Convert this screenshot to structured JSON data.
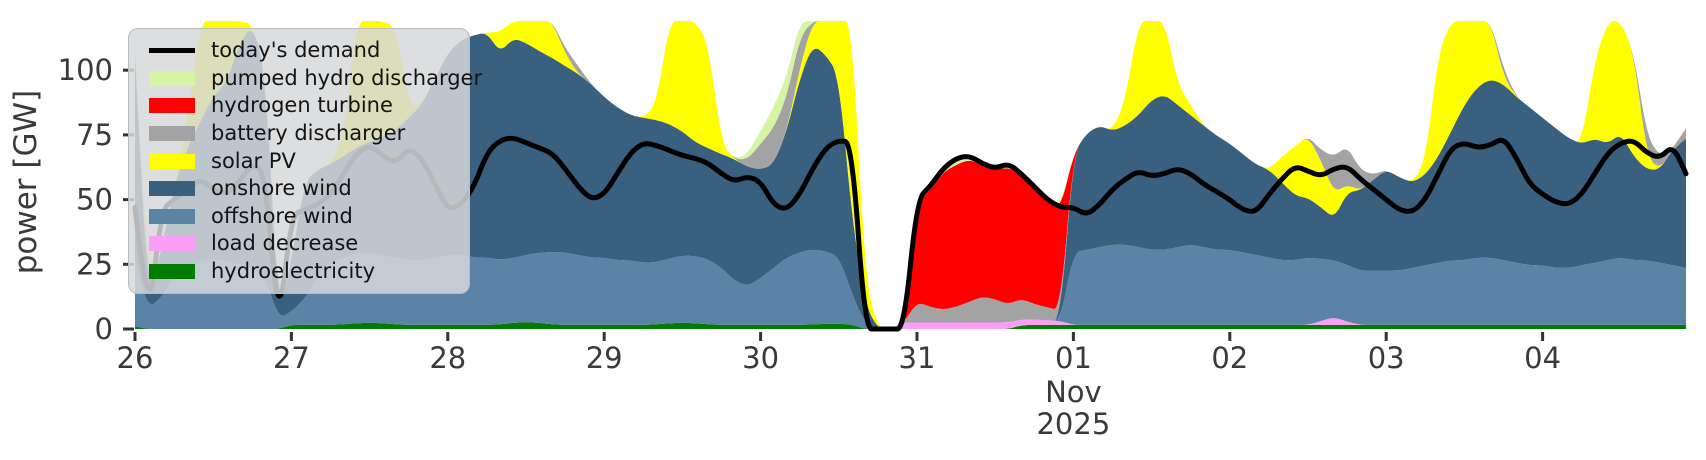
{
  "chart_data": {
    "type": "area",
    "stacked": true,
    "title": "",
    "ylabel": "power [GW]",
    "y_ticks": [
      0,
      25,
      50,
      75,
      100
    ],
    "ylim": [
      0,
      119
    ],
    "x_tick_labels": [
      "26",
      "27",
      "28",
      "29",
      "30",
      "31",
      "01",
      "02",
      "03",
      "04"
    ],
    "x_month_label": "Nov",
    "x_year_label": "2025",
    "hours_step": 2,
    "legend": {
      "items": [
        {
          "label": "today's demand",
          "type": "line",
          "color": "#000000"
        },
        {
          "label": "pumped hydro discharger",
          "type": "patch",
          "color": "#d5f5a5"
        },
        {
          "label": "hydrogen turbine",
          "type": "patch",
          "color": "#ff0000"
        },
        {
          "label": "battery discharger",
          "type": "patch",
          "color": "#a3a3a3"
        },
        {
          "label": "solar PV",
          "type": "patch",
          "color": "#ffff00"
        },
        {
          "label": "onshore wind",
          "type": "patch",
          "color": "#39607f"
        },
        {
          "label": "offshore wind",
          "type": "patch",
          "color": "#5b83a6"
        },
        {
          "label": "load decrease",
          "type": "patch",
          "color": "#fa9ef7"
        },
        {
          "label": "hydroelectricity",
          "type": "patch",
          "color": "#007d00"
        }
      ]
    },
    "series": [
      {
        "name": "hydroelectricity",
        "color": "#007d00",
        "values": [
          1,
          0,
          0,
          0,
          0,
          0,
          0,
          0,
          0,
          0,
          0,
          0,
          1.6,
          1.6,
          1.6,
          1.6,
          1.8,
          2.2,
          2.4,
          2.2,
          1.8,
          1.6,
          1.6,
          1.6,
          1.6,
          1.6,
          1.6,
          1.6,
          1.8,
          2.4,
          2.6,
          2.4,
          1.8,
          1.6,
          1.6,
          1.6,
          1.6,
          1.6,
          1.6,
          1.6,
          1.8,
          2.2,
          2.4,
          2.2,
          1.8,
          1.6,
          1.6,
          1.6,
          1.6,
          1.6,
          1.6,
          1.6,
          1.8,
          2,
          2,
          1.8,
          0,
          0,
          0,
          0,
          0,
          0,
          0,
          0,
          0,
          0,
          0,
          0,
          1.5,
          1.6,
          1.6,
          1.6,
          1.6,
          1.6,
          1.6,
          1.6,
          1.6,
          1.6,
          1.6,
          1.6,
          1.6,
          1.6,
          1.6,
          1.6,
          1.6,
          1.6,
          1.6,
          1.6,
          1.6,
          1.6,
          1.6,
          1.6,
          1.6,
          1.6,
          1.6,
          1.6,
          1.6,
          1.6,
          1.6,
          1.6,
          1.6,
          1.6,
          1.6,
          1.6,
          1.6,
          1.6,
          1.6,
          1.6,
          1.6,
          1.6,
          1.6,
          1.6,
          1.6,
          1.6,
          1.6,
          1.6,
          1.6,
          1.6,
          1.6,
          1.6
        ]
      },
      {
        "name": "load decrease",
        "color": "#fa9ef7",
        "values": [
          0,
          0,
          0,
          0,
          0,
          0,
          0,
          0,
          0,
          0,
          0,
          0,
          0,
          0,
          0,
          0,
          0,
          0,
          0,
          0,
          0,
          0,
          0,
          0,
          0,
          0,
          0,
          0,
          0,
          0,
          0,
          0,
          0,
          0,
          0,
          0,
          0,
          0,
          0,
          0,
          0,
          0,
          0,
          0,
          0,
          0,
          0,
          0,
          0,
          0,
          0,
          0,
          0,
          0,
          0,
          0,
          0,
          0,
          0,
          2.5,
          2.5,
          2.5,
          2.5,
          2.5,
          2.5,
          2.5,
          2.5,
          2.5,
          2.2,
          2,
          1.8,
          1.5,
          0,
          0,
          0,
          0,
          0,
          0,
          0,
          0,
          0,
          0,
          0,
          0,
          0,
          0,
          0,
          0,
          0,
          0,
          0,
          1.5,
          3,
          1.2,
          0,
          0,
          0,
          0,
          0,
          0,
          0,
          0,
          0,
          0,
          0,
          0,
          0,
          0,
          0,
          0,
          0,
          0,
          0,
          0,
          0,
          0,
          0,
          0,
          0,
          0
        ]
      },
      {
        "name": "offshore wind",
        "color": "#5b83a6",
        "values": [
          26,
          8,
          12,
          20,
          24,
          26,
          27,
          26,
          25,
          24,
          20,
          4,
          5,
          10,
          18,
          24,
          26,
          27,
          27,
          26,
          26,
          25,
          25,
          26,
          27,
          27,
          26,
          26,
          25,
          25,
          26,
          27,
          28,
          28,
          27,
          26,
          26,
          25,
          25,
          24,
          24,
          25,
          26,
          26,
          25,
          22,
          17,
          15,
          18,
          22,
          26,
          28,
          29,
          28,
          26,
          12,
          2,
          0,
          0,
          0,
          0,
          0,
          0,
          0,
          0,
          0,
          0,
          0,
          0,
          0,
          0,
          0,
          28,
          29,
          30,
          31,
          31,
          30,
          29,
          29,
          30,
          31,
          30,
          29,
          29,
          28,
          27,
          26,
          25,
          25,
          26,
          24,
          22,
          22,
          21,
          21,
          21,
          21,
          22,
          23,
          24,
          25,
          25,
          26,
          26,
          25,
          24,
          23,
          23,
          22,
          22,
          23,
          24,
          25,
          26,
          25,
          25,
          24,
          23,
          22
        ]
      },
      {
        "name": "onshore wind",
        "color": "#39607f",
        "values": [
          79,
          2,
          18,
          35,
          46,
          54,
          63,
          69,
          85,
          94,
          80,
          0,
          20,
          45,
          42,
          38,
          39,
          41,
          43,
          46,
          49,
          55,
          60,
          69,
          78,
          83,
          86,
          87,
          80,
          85,
          82,
          78,
          75,
          72,
          70,
          67,
          62,
          59,
          56,
          56,
          55,
          52,
          48,
          44,
          43,
          44,
          47,
          46,
          42,
          40,
          49,
          67,
          79,
          76,
          70,
          30,
          8,
          0,
          0,
          0,
          0,
          0,
          0,
          0,
          0,
          0,
          0,
          0,
          0,
          0,
          0,
          0,
          38,
          45,
          47,
          44,
          46,
          51,
          58,
          60,
          55,
          50,
          47,
          44,
          41,
          38,
          35,
          34,
          30,
          25,
          23,
          20,
          16,
          28,
          31,
          35,
          39,
          36,
          33,
          35,
          41,
          50,
          60,
          66,
          69,
          68,
          64,
          61,
          57,
          54,
          50,
          47,
          48,
          45,
          48,
          40,
          35,
          36,
          45,
          50
        ]
      },
      {
        "name": "solar PV",
        "color": "#ffff00",
        "values": [
          0,
          0,
          0,
          0,
          10,
          60,
          130,
          60,
          10,
          0,
          0,
          0,
          0,
          0,
          0,
          0,
          8,
          50,
          120,
          125,
          40,
          5,
          0,
          0,
          0,
          0,
          0,
          0,
          8,
          70,
          150,
          140,
          60,
          5,
          0,
          0,
          0,
          0,
          0,
          0,
          6,
          50,
          130,
          120,
          40,
          4,
          0,
          0,
          0,
          0,
          0,
          4,
          25,
          80,
          140,
          150,
          10,
          0,
          0,
          0,
          0,
          0,
          0,
          0,
          0,
          0,
          0,
          0,
          0,
          0,
          0,
          0,
          0,
          0,
          0,
          0,
          10,
          60,
          140,
          80,
          8,
          4,
          0,
          0,
          0,
          0,
          0,
          0,
          10,
          19,
          24,
          18,
          10,
          3,
          0,
          0,
          0,
          0,
          0,
          5,
          40,
          130,
          150,
          120,
          30,
          3,
          0,
          0,
          0,
          0,
          0,
          0,
          30,
          110,
          140,
          40,
          5,
          0,
          0,
          0
        ]
      },
      {
        "name": "battery discharger",
        "color": "#a3a3a3",
        "values": [
          0,
          0,
          0,
          0,
          0,
          0,
          0,
          0,
          0,
          0,
          0,
          0,
          0,
          0,
          0,
          0,
          0,
          0,
          0,
          0,
          0,
          0,
          0,
          0,
          0,
          0,
          0,
          0,
          0,
          0,
          0,
          0,
          0,
          2,
          3,
          0,
          0,
          0,
          0,
          0,
          0,
          0,
          0,
          0,
          0,
          0,
          0,
          3,
          10,
          14,
          13,
          12,
          8,
          4,
          2,
          0,
          0,
          0,
          0,
          0,
          8,
          6,
          5,
          6,
          8,
          10,
          9,
          7,
          8,
          6,
          5,
          4,
          0,
          0,
          0,
          0,
          0,
          0,
          0,
          0,
          0,
          0,
          0,
          0,
          0,
          0,
          0,
          0,
          0,
          0,
          0,
          4,
          14,
          15,
          8,
          2,
          0,
          0,
          0,
          0,
          0,
          0,
          0,
          0,
          0,
          3,
          0,
          0,
          0,
          0,
          0,
          0,
          0,
          0,
          0,
          0,
          8,
          5,
          0,
          4
        ]
      },
      {
        "name": "hydrogen turbine",
        "color": "#ff0000",
        "values": [
          0,
          0,
          0,
          0,
          0,
          0,
          0,
          0,
          0,
          0,
          0,
          0,
          0,
          0,
          0,
          0,
          0,
          0,
          0,
          0,
          0,
          0,
          0,
          0,
          0,
          0,
          0,
          0,
          0,
          0,
          0,
          0,
          0,
          0,
          0,
          0,
          0,
          0,
          0,
          0,
          0,
          0,
          0,
          0,
          0,
          0,
          0,
          0,
          0,
          0,
          0,
          0,
          0,
          0,
          0,
          0,
          0,
          0,
          0,
          0,
          38,
          45,
          53,
          55,
          55,
          51,
          50,
          53,
          48,
          45,
          41,
          39,
          0,
          0,
          0,
          0,
          0,
          0,
          0,
          0,
          0,
          0,
          0,
          0,
          0,
          0,
          0,
          0,
          0,
          0,
          0,
          0,
          0,
          0,
          0,
          0,
          0,
          0,
          0,
          0,
          0,
          0,
          0,
          0,
          0,
          0,
          0,
          0,
          0,
          0,
          0,
          0,
          0,
          0,
          0,
          0,
          0,
          0,
          0,
          0
        ]
      },
      {
        "name": "pumped hydro discharger",
        "color": "#d5f5a5",
        "values": [
          6,
          0,
          0,
          0,
          0,
          0,
          0,
          0,
          0,
          0,
          0,
          0,
          0,
          0,
          0,
          0,
          0,
          0,
          0,
          0,
          0,
          0,
          0,
          0,
          0,
          0,
          0,
          0,
          0,
          0,
          0,
          0,
          0,
          0,
          0,
          0,
          0,
          0,
          0,
          0,
          0,
          0,
          0,
          0,
          0,
          0,
          0,
          2,
          5,
          8,
          8,
          6,
          3,
          0,
          0,
          0,
          0,
          0,
          0,
          0,
          1.5,
          1.5,
          1.5,
          1.5,
          1.5,
          1.5,
          1.5,
          1.5,
          1.5,
          1.5,
          1.5,
          1.5,
          0,
          0,
          0,
          0,
          0,
          0,
          0,
          0,
          0,
          0,
          0,
          0,
          0,
          0,
          0,
          0,
          0,
          0,
          0,
          0,
          0,
          0,
          0,
          0,
          0,
          0,
          0,
          0,
          0,
          0,
          0,
          0,
          0,
          0,
          0,
          0,
          0,
          0,
          0,
          0,
          0,
          0,
          0,
          0,
          0,
          0,
          0,
          0
        ]
      }
    ],
    "demand": {
      "name": "today's demand",
      "color": "#000000",
      "values": [
        47,
        0,
        46,
        50,
        54,
        58,
        54,
        52,
        57,
        64,
        60,
        0,
        44,
        46,
        48,
        52,
        60,
        68,
        71,
        67,
        64,
        70,
        66,
        56,
        46,
        48,
        55,
        68,
        73,
        74,
        72,
        70,
        68,
        62,
        55,
        50,
        52,
        60,
        68,
        72,
        71,
        69,
        67,
        66,
        64,
        60,
        57,
        59,
        57,
        48,
        46,
        52,
        62,
        70,
        73,
        72,
        0,
        0,
        0,
        0,
        50,
        55,
        62,
        66,
        67,
        64,
        62,
        64,
        60,
        55,
        50,
        47,
        47,
        44,
        48,
        54,
        58,
        61,
        59,
        60,
        62,
        60,
        56,
        53,
        50,
        46,
        45,
        52,
        58,
        63,
        61,
        59,
        62,
        63,
        58,
        54,
        50,
        46,
        45,
        50,
        60,
        70,
        72,
        70,
        71,
        74,
        66,
        56,
        52,
        49,
        48,
        52,
        60,
        68,
        72,
        73,
        68,
        66,
        71,
        60
      ]
    }
  }
}
